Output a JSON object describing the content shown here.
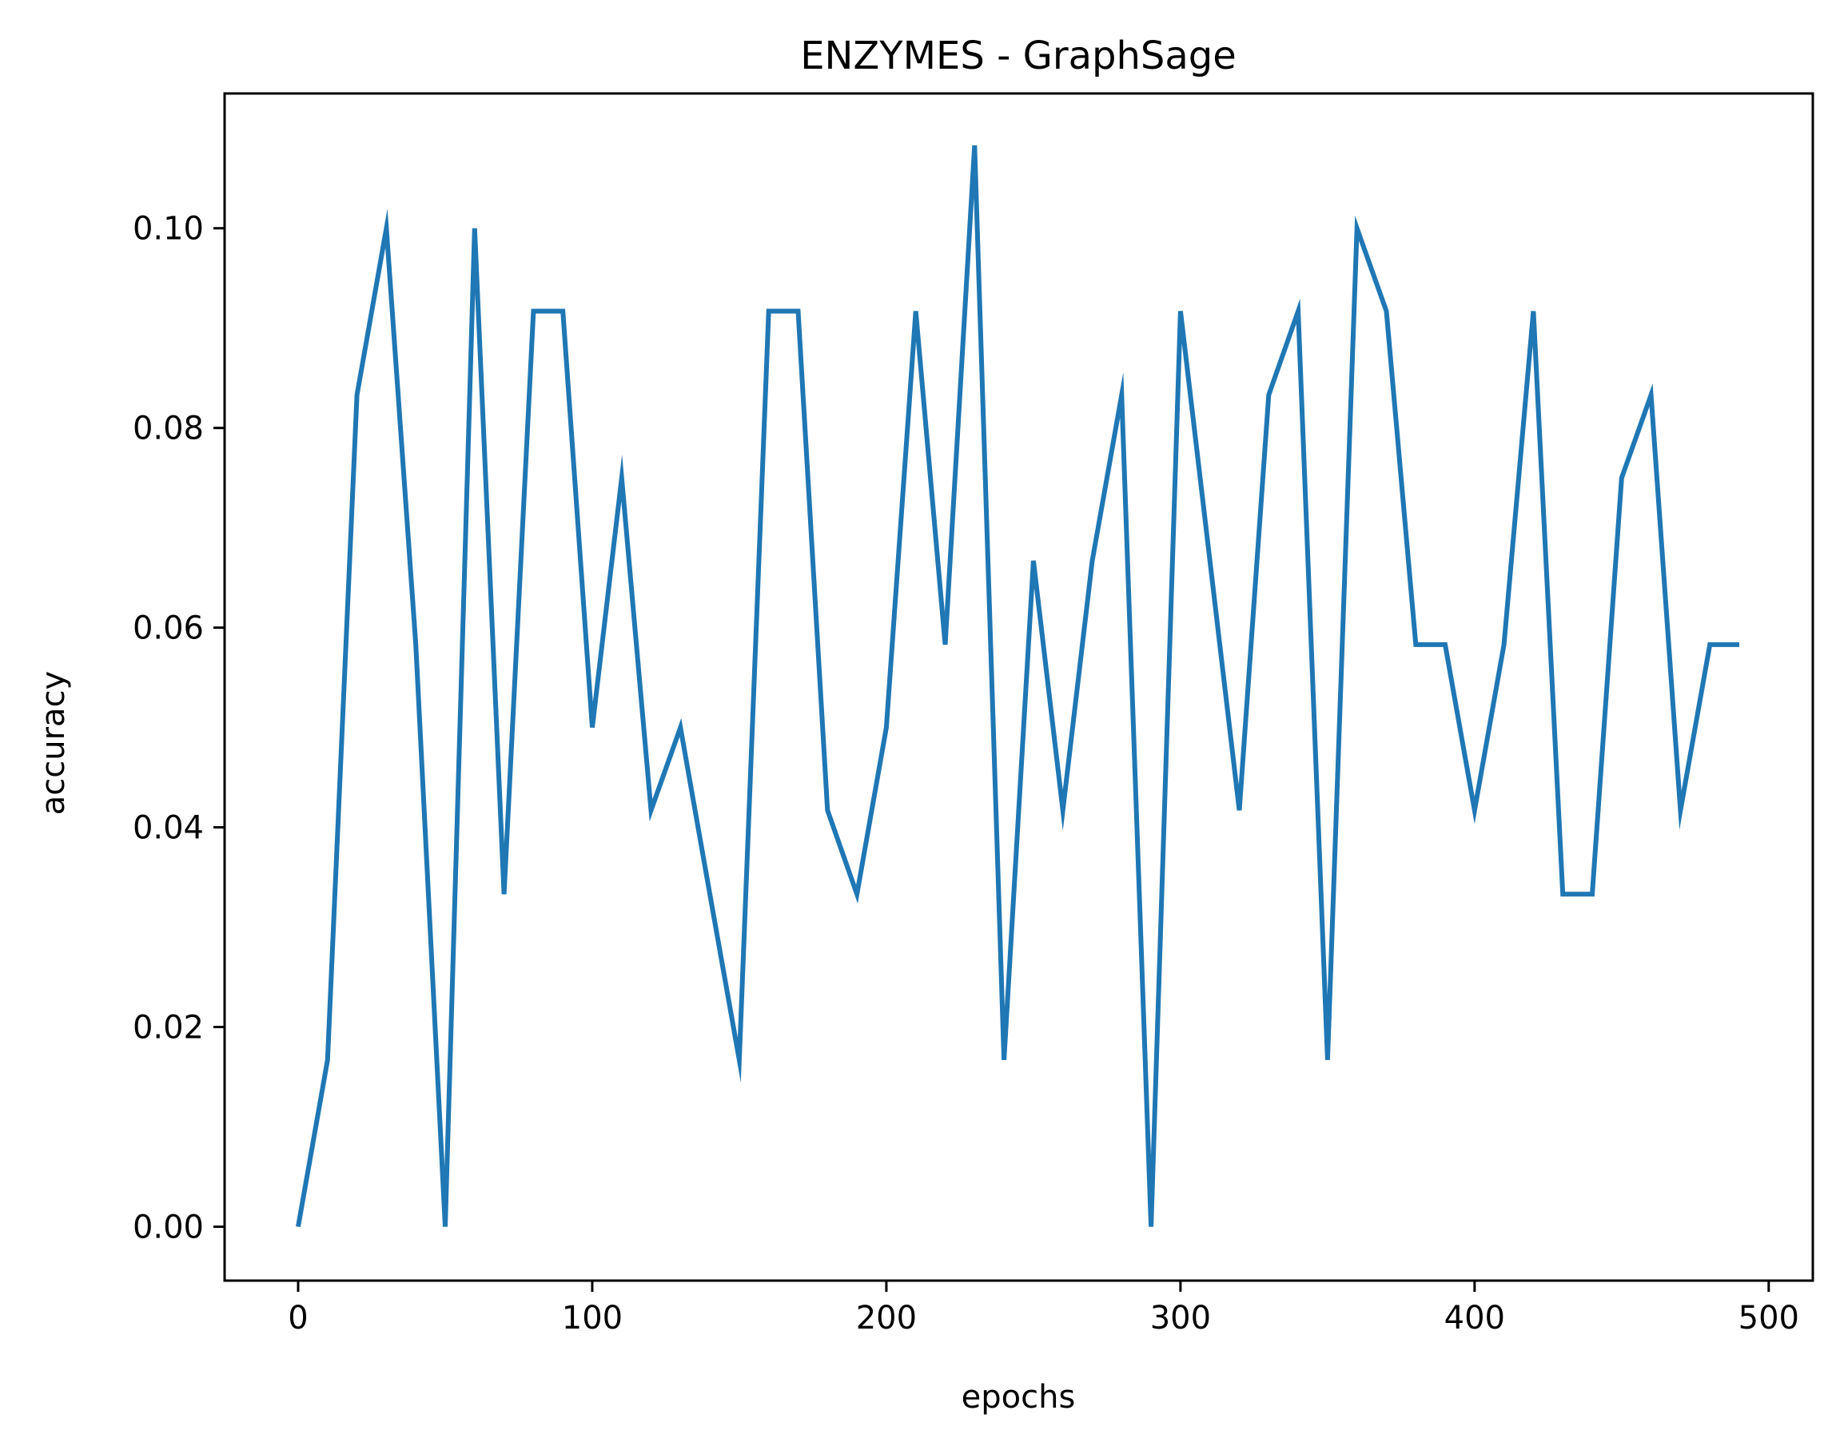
{
  "chart_data": {
    "type": "line",
    "title": "ENZYMES - GraphSage",
    "xlabel": "epochs",
    "ylabel": "accuracy",
    "xlim": [
      -25,
      515
    ],
    "ylim": [
      -0.0054,
      0.1135
    ],
    "xticks": [
      0,
      100,
      200,
      300,
      400,
      500
    ],
    "xtick_labels": [
      "0",
      "100",
      "200",
      "300",
      "400",
      "500"
    ],
    "yticks": [
      0.0,
      0.02,
      0.04,
      0.06,
      0.08,
      0.1
    ],
    "ytick_labels": [
      "0.00",
      "0.02",
      "0.04",
      "0.06",
      "0.08",
      "0.10"
    ],
    "grid": false,
    "series": [
      {
        "color": "#1f77b4",
        "x": [
          0,
          10,
          20,
          30,
          40,
          50,
          60,
          70,
          80,
          90,
          100,
          110,
          120,
          130,
          140,
          150,
          160,
          170,
          180,
          190,
          200,
          210,
          220,
          230,
          240,
          250,
          260,
          270,
          280,
          290,
          300,
          310,
          320,
          330,
          340,
          350,
          360,
          370,
          380,
          390,
          400,
          410,
          420,
          430,
          440,
          450,
          460,
          470,
          480,
          490
        ],
        "y": [
          0.0,
          0.0167,
          0.0833,
          0.1,
          0.0583,
          0.0,
          0.1,
          0.0333,
          0.0917,
          0.0917,
          0.05,
          0.075,
          0.0417,
          0.05,
          0.0333,
          0.0167,
          0.0917,
          0.0917,
          0.0417,
          0.0333,
          0.05,
          0.0917,
          0.0583,
          0.1083,
          0.0167,
          0.0667,
          0.0417,
          0.0667,
          0.0833,
          0.0,
          0.0917,
          0.0667,
          0.0417,
          0.0833,
          0.0917,
          0.0167,
          0.1,
          0.0917,
          0.0583,
          0.0583,
          0.0417,
          0.0583,
          0.0917,
          0.0333,
          0.0333,
          0.075,
          0.0833,
          0.0417,
          0.0583,
          0.0583
        ]
      }
    ]
  }
}
